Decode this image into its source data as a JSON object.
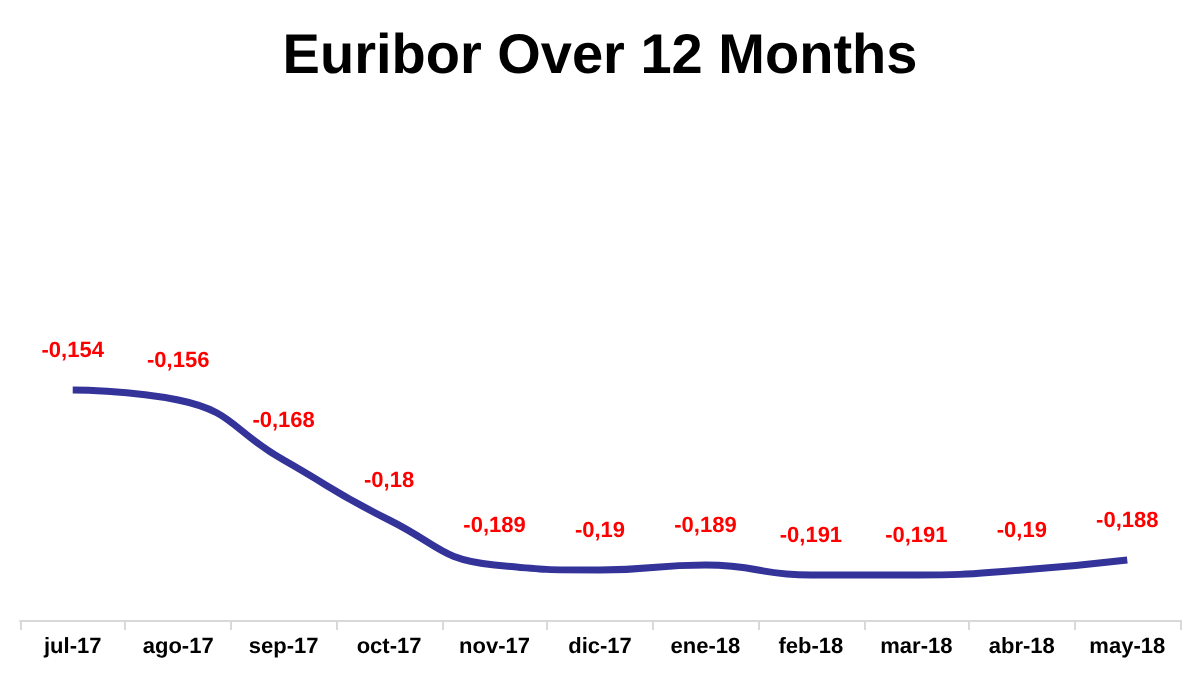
{
  "chart_data": {
    "type": "line",
    "title": "Euribor Over 12 Months",
    "categories": [
      "jul-17",
      "ago-17",
      "sep-17",
      "oct-17",
      "nov-17",
      "dic-17",
      "ene-18",
      "feb-18",
      "mar-18",
      "abr-18",
      "may-18"
    ],
    "series": [
      {
        "color": "#333399",
        "values": [
          -0.154,
          -0.156,
          -0.168,
          -0.18,
          -0.189,
          -0.19,
          -0.189,
          -0.191,
          -0.191,
          -0.19,
          -0.188
        ],
        "value_labels": [
          "-0,154",
          "-0,156",
          "-0,168",
          "-0,18",
          "-0,189",
          "-0,19",
          "-0,189",
          "-0,191",
          "-0,191",
          "-0,19",
          "-0,188"
        ]
      }
    ],
    "marker": "none",
    "grid": false,
    "tick_labels": "x"
  }
}
